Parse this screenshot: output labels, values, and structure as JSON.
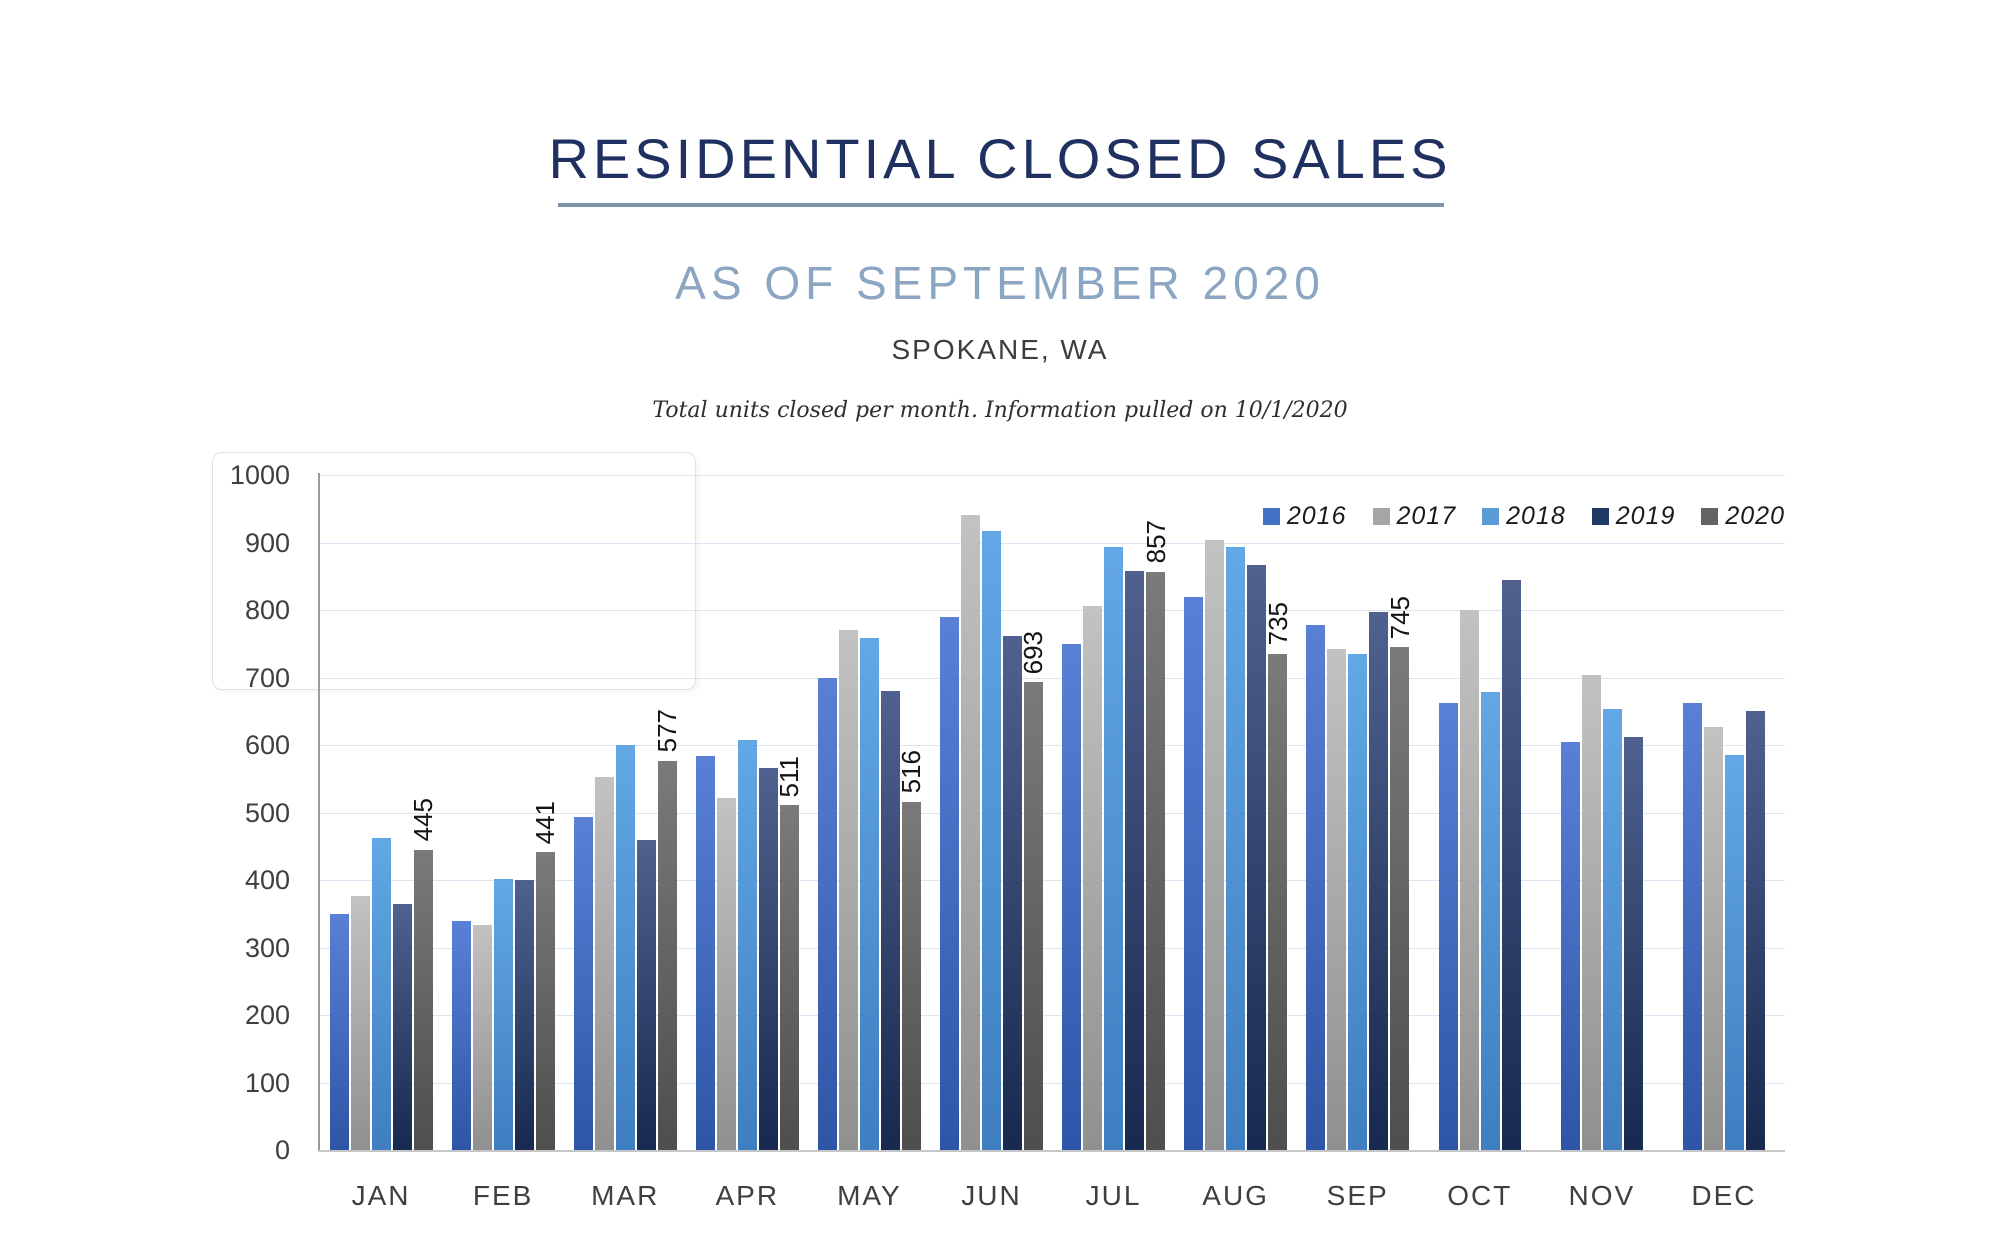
{
  "header": {
    "title": "RESIDENTIAL CLOSED SALES",
    "subtitle": "AS OF SEPTEMBER 2020",
    "location": "SPOKANE, WA",
    "note": "Total units closed per month.  Information pulled on 10/1/2020"
  },
  "colors": {
    "title": "#1F3061",
    "subtitle": "#8CA5C2",
    "title_underline": "#7E93AC",
    "gridline": "#dbe5f2",
    "axis": "#9b9b9b"
  },
  "chart_data": {
    "type": "bar",
    "title": "Residential Closed Sales by month, Spokane WA, as of September 2020",
    "categories": [
      "JAN",
      "FEB",
      "MAR",
      "APR",
      "MAY",
      "JUN",
      "JUL",
      "AUG",
      "SEP",
      "OCT",
      "NOV",
      "DEC"
    ],
    "series": [
      {
        "name": "2016",
        "color": "#4472C4",
        "gradient": [
          "#5880D6",
          "#2E56A6"
        ],
        "values": [
          350,
          339,
          494,
          584,
          700,
          790,
          750,
          819,
          778,
          662,
          605,
          662
        ],
        "show_data_labels": false
      },
      {
        "name": "2017",
        "color": "#A6A6A6",
        "gradient": [
          "#C2C2C2",
          "#909090"
        ],
        "values": [
          377,
          333,
          552,
          522,
          770,
          941,
          806,
          903,
          742,
          800,
          703,
          626
        ],
        "show_data_labels": false
      },
      {
        "name": "2018",
        "color": "#5B9BD5",
        "gradient": [
          "#63A7E4",
          "#3E7EC1"
        ],
        "values": [
          462,
          402,
          600,
          607,
          758,
          917,
          893,
          894,
          735,
          678,
          653,
          585
        ],
        "show_data_labels": false
      },
      {
        "name": "2019",
        "color": "#1F3864",
        "gradient": [
          "#50618F",
          "#17294F"
        ],
        "values": [
          365,
          400,
          459,
          566,
          680,
          762,
          858,
          866,
          797,
          845,
          612,
          650
        ],
        "show_data_labels": false
      },
      {
        "name": "2020",
        "color": "#636363",
        "gradient": [
          "#7A7A7A",
          "#4E4E4E"
        ],
        "values": [
          445,
          441,
          577,
          511,
          516,
          693,
          857,
          735,
          745,
          null,
          null,
          null
        ],
        "show_data_labels": true
      }
    ],
    "xlabel": "",
    "ylabel": "",
    "ylim": [
      0,
      1000
    ],
    "ytick_step": 100,
    "grid": true,
    "legend_position": "top-right"
  }
}
